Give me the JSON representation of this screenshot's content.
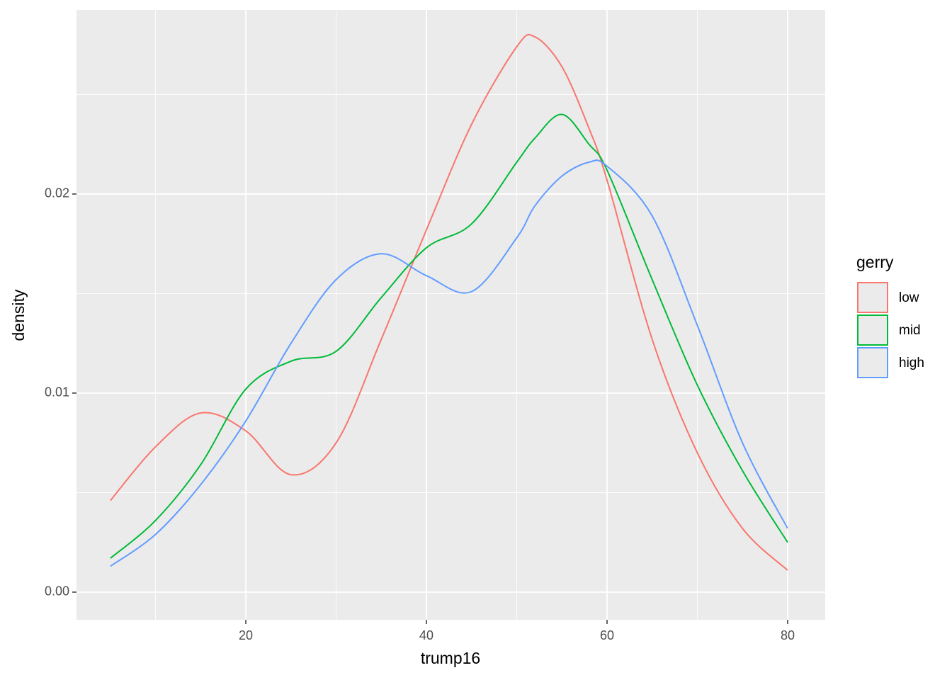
{
  "chart_data": {
    "type": "line",
    "x_label": "trump16",
    "y_label": "density",
    "legend_title": "gerry",
    "x": [
      5,
      10,
      15,
      20,
      25,
      30,
      35,
      40,
      45,
      50,
      52,
      55,
      58,
      60,
      65,
      70,
      75,
      80
    ],
    "series": [
      {
        "name": "low",
        "color": "#f8766d",
        "values": [
          0.0046,
          0.0073,
          0.009,
          0.0081,
          0.0059,
          0.0075,
          0.0127,
          0.0182,
          0.0235,
          0.0274,
          0.0279,
          0.0264,
          0.0233,
          0.0207,
          0.0127,
          0.007,
          0.0032,
          0.0011
        ]
      },
      {
        "name": "mid",
        "color": "#00ba38",
        "values": [
          0.0017,
          0.0036,
          0.0064,
          0.0102,
          0.0116,
          0.0121,
          0.0148,
          0.0173,
          0.0185,
          0.0216,
          0.0228,
          0.024,
          0.0225,
          0.0212,
          0.0157,
          0.0104,
          0.0061,
          0.0025
        ]
      },
      {
        "name": "high",
        "color": "#619cff",
        "values": [
          0.0013,
          0.0029,
          0.0054,
          0.0086,
          0.0125,
          0.0157,
          0.017,
          0.0159,
          0.0151,
          0.0178,
          0.0194,
          0.0209,
          0.0216,
          0.0214,
          0.0189,
          0.0134,
          0.0075,
          0.0032
        ]
      }
    ],
    "xlim": [
      1.25,
      84.16
    ],
    "ylim": [
      -0.00139,
      0.02925
    ],
    "xticks": [
      20,
      40,
      60,
      80
    ],
    "yticks": [
      {
        "value": 0,
        "label": "0.00"
      },
      0.01,
      0.02
    ],
    "x_minor_grid": [
      10,
      30,
      50,
      70
    ],
    "y_minor_grid": [
      0.005,
      0.015,
      0.025
    ],
    "grid": true,
    "legend": "right"
  }
}
